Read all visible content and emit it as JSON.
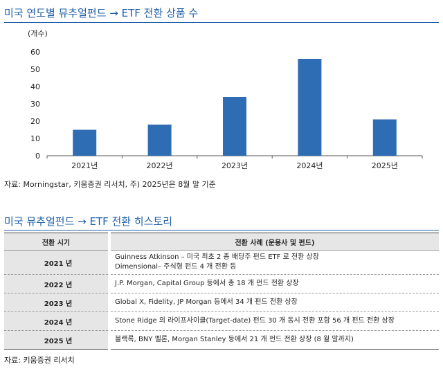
{
  "chart_title": "미국 연도별 뮤추얼펀드 → ETF 전환 상품 수",
  "chart_data": {
    "type": "bar",
    "unit_label": "(개수)",
    "categories": [
      "2021년",
      "2022년",
      "2023년",
      "2024년",
      "2025년"
    ],
    "values": [
      15,
      18,
      34,
      56,
      21
    ],
    "yticks": [
      0,
      10,
      20,
      30,
      40,
      50,
      60
    ],
    "ylim": [
      0,
      60
    ],
    "bar_color": "#2e6db4",
    "grid": false
  },
  "chart_source": "자료: Morningstar, 키움증권 리서치, 주) 2025년은 8월 말 기준",
  "table_title": "미국 뮤추얼펀드 → ETF 전환 히스토리",
  "table": {
    "headers": [
      "전환 시기",
      "전환 사례 (운용사 및 펀드)"
    ],
    "rows": [
      {
        "year": "2021 년",
        "lines": [
          "Guinness Atkinson – 미국 최초 2 종 배당주 펀드 ETF 로 전환 상장",
          "Dimensional– 주식형 펀드 4 개 전환 등"
        ]
      },
      {
        "year": "2022 년",
        "lines": [
          "J.P. Morgan, Capital Group 등에서 총 18 개 펀드 전환 상장"
        ]
      },
      {
        "year": "2023 년",
        "lines": [
          "Global X, Fidelity, JP Morgan 등에서 34 개 펀드 전환 상장"
        ]
      },
      {
        "year": "2024 년",
        "lines": [
          "Stone Ridge 의 라이프사이클(Target-date) 펀드 30 개 동시 전환 포함 56 개 펀드 전환 상장"
        ]
      },
      {
        "year": "2025 년",
        "lines": [
          "블랙록, BNY 멜론, Morgan Stanley 등에서 21 개 펀드 전환 상장 (8 월 말까지)"
        ]
      }
    ]
  },
  "table_source": "자료: 키움증권 리서치"
}
